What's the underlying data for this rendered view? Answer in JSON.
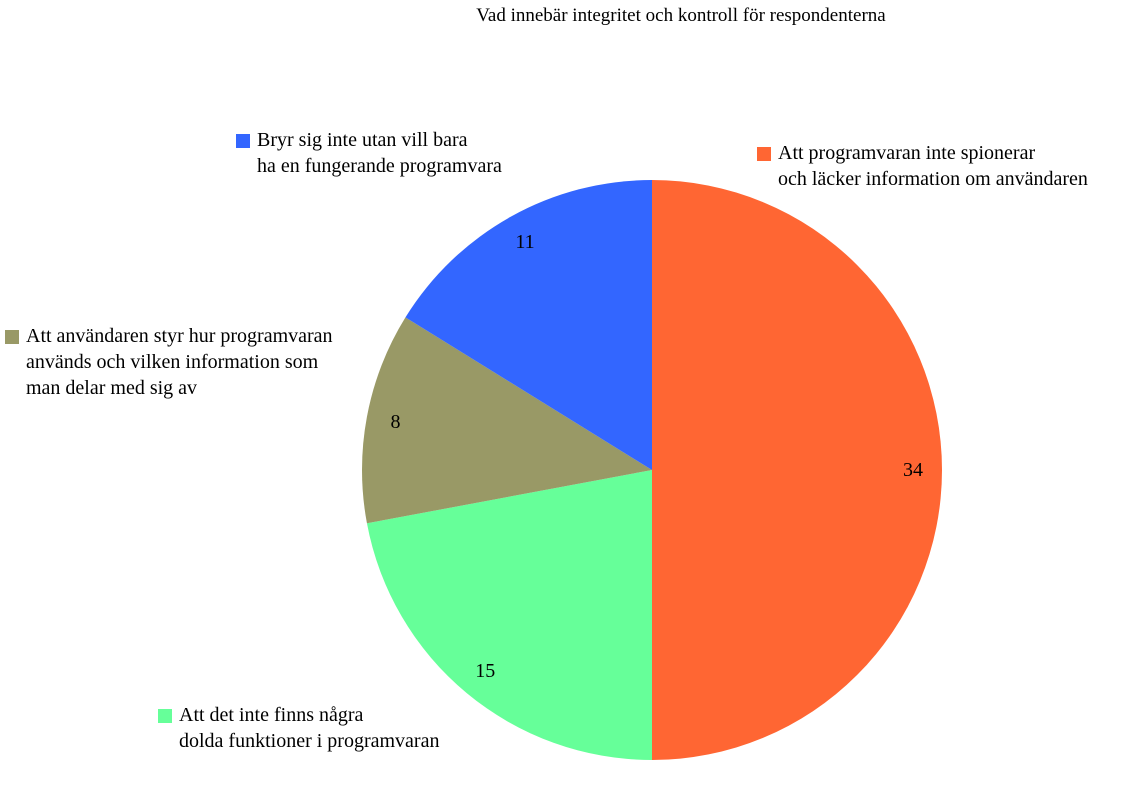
{
  "chart_data": {
    "type": "pie",
    "title": "Vad innebär integritet och kontroll för respondenterna",
    "start_angle_deg": 0,
    "direction": "clockwise",
    "slices": [
      {
        "label_lines": [
          "Att programvaran inte spionerar",
          "och läcker information om användaren"
        ],
        "value": 34,
        "color": "#ff6633"
      },
      {
        "label_lines": [
          "Att det inte finns några",
          "dolda funktioner i programvaran"
        ],
        "value": 15,
        "color": "#66ff99"
      },
      {
        "label_lines": [
          "Att användaren styr hur programvaran",
          "används och vilken information som",
          "man delar med sig av"
        ],
        "value": 8,
        "color": "#999966"
      },
      {
        "label_lines": [
          "Bryr sig inte utan vill bara",
          "ha en fungerande programvara"
        ],
        "value": 11,
        "color": "#3366ff"
      }
    ]
  }
}
